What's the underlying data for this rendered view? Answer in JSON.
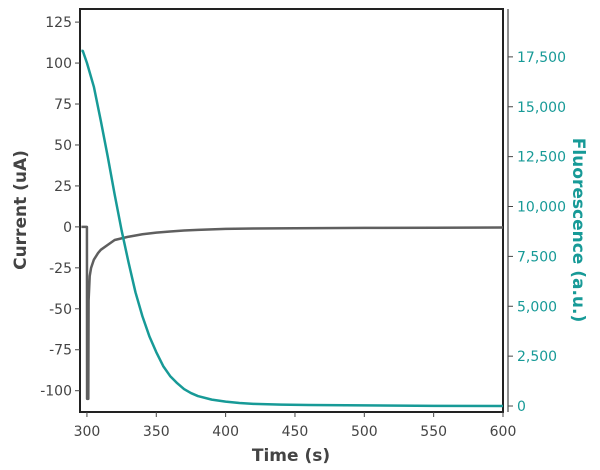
{
  "chart_data": {
    "type": "line",
    "title": "",
    "xlabel": "Time (s)",
    "ylabel": "Current (uA)",
    "ylabel_right": "Fluorescence (a.u.)",
    "xlim": [
      295,
      600
    ],
    "ylim": [
      -113,
      133
    ],
    "ylim_right": [
      -300,
      19900
    ],
    "x_ticks": [
      300,
      350,
      400,
      450,
      500,
      550,
      600
    ],
    "x_tick_labels": [
      "300",
      "350",
      "400",
      "450",
      "500",
      "550",
      "600"
    ],
    "y_ticks": [
      125,
      100,
      75,
      50,
      25,
      0,
      -25,
      -50,
      -75,
      -100
    ],
    "y_tick_labels": [
      "125",
      "100",
      "75",
      "50",
      "25",
      "0",
      "-25",
      "-50",
      "-75",
      "-100"
    ],
    "y_right_ticks": [
      17500,
      15000,
      12500,
      10000,
      7500,
      5000,
      2500,
      0
    ],
    "y_right_tick_labels": [
      "17,500",
      "15,000",
      "12,500",
      "10,000",
      "7,500",
      "5,000",
      "2,500",
      "0"
    ],
    "grid": false,
    "series": [
      {
        "axis": "left",
        "color": "#5f5f5f",
        "x": [
          296,
          300,
          300.1,
          301,
          301.2,
          302,
          303,
          305,
          308,
          310,
          315,
          320,
          330,
          340,
          350,
          360,
          370,
          380,
          390,
          400,
          420,
          450,
          500,
          550,
          600
        ],
        "y": [
          0,
          0,
          -105,
          -105,
          -45,
          -30,
          -25,
          -20,
          -16,
          -14,
          -11,
          -8,
          -6,
          -4.5,
          -3.5,
          -2.8,
          -2.2,
          -1.8,
          -1.5,
          -1.2,
          -1,
          -0.8,
          -0.6,
          -0.5,
          -0.4
        ]
      },
      {
        "axis": "right",
        "color": "#179a97",
        "x": [
          296,
          297,
          300,
          305,
          310,
          315,
          320,
          325,
          330,
          335,
          340,
          345,
          350,
          355,
          360,
          365,
          370,
          375,
          380,
          390,
          400,
          410,
          420,
          440,
          460,
          500,
          550,
          600
        ],
        "y": [
          17800,
          17800,
          17200,
          16000,
          14300,
          12500,
          10600,
          8800,
          7200,
          5700,
          4500,
          3500,
          2700,
          2000,
          1500,
          1150,
          850,
          650,
          500,
          320,
          220,
          150,
          110,
          70,
          50,
          30,
          10,
          0
        ]
      }
    ]
  }
}
